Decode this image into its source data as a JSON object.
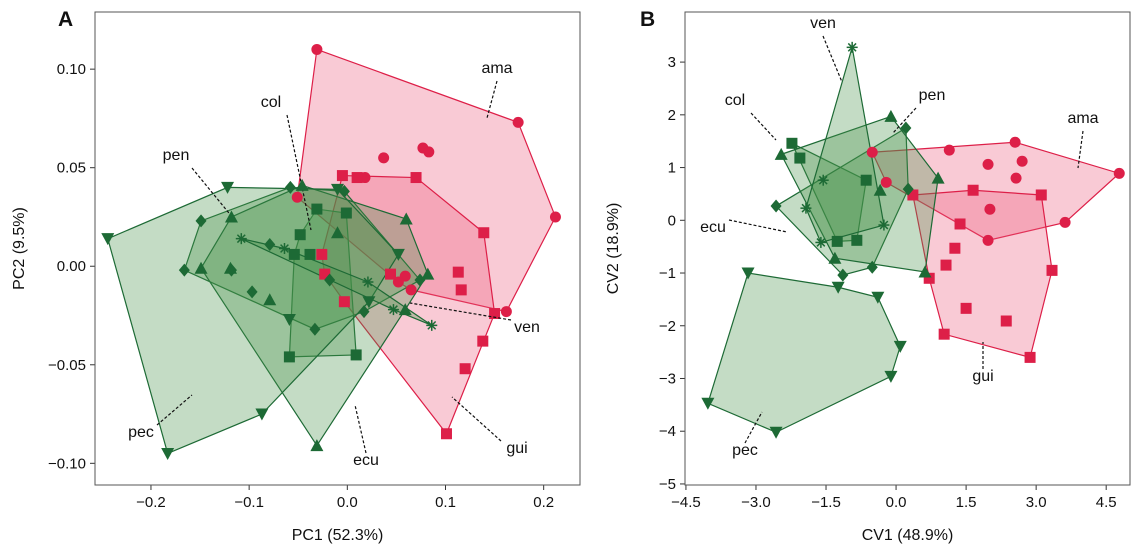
{
  "chart_data": [
    {
      "type": "scatter",
      "panel_label": "A",
      "xlabel": "PC1 (52.3%)",
      "ylabel": "PC2 (9.5%)",
      "xlim": [
        -0.257,
        0.237
      ],
      "ylim": [
        -0.111,
        0.129
      ],
      "xticks": [
        {
          "value": -0.2,
          "label": "−0.2"
        },
        {
          "value": -0.1,
          "label": "−0.1"
        },
        {
          "value": 0,
          "label": "0.0"
        },
        0.1,
        0.2
      ],
      "yticks": [
        {
          "value": -0.1,
          "label": "−0.10"
        },
        {
          "value": -0.05,
          "label": "−0.05"
        },
        {
          "value": 0,
          "label": "0.00"
        },
        {
          "value": 0.05,
          "label": "0.05"
        },
        {
          "value": 0.1,
          "label": "0.10"
        }
      ],
      "series": [
        {
          "name": "ama",
          "color": "#dd1f48",
          "marker": "circle",
          "x": [
            -0.031,
            0.174,
            0.212,
            0.162,
            -0.051,
            0.018,
            0.037,
            0.077,
            0.083,
            0.059,
            0.052,
            0.065
          ],
          "values": [
            0.11,
            0.073,
            0.025,
            -0.023,
            0.035,
            0.045,
            0.055,
            0.06,
            0.058,
            -0.005,
            -0.008,
            -0.012
          ]
        },
        {
          "name": "gui",
          "color": "#dd1f48",
          "marker": "square",
          "x": [
            -0.005,
            0.01,
            0.07,
            0.139,
            0.113,
            0.116,
            0.15,
            0.138,
            0.12,
            0.101,
            -0.026,
            -0.023,
            -0.003,
            0.044
          ],
          "values": [
            0.046,
            0.045,
            0.045,
            0.017,
            -0.003,
            -0.012,
            -0.024,
            -0.038,
            -0.052,
            -0.085,
            0.006,
            -0.004,
            -0.018,
            -0.004
          ]
        },
        {
          "name": "col",
          "color": "#1d6a35",
          "marker": "square",
          "x": [
            -0.031,
            -0.054,
            -0.059,
            0.009,
            -0.048,
            -0.001,
            -0.038
          ],
          "values": [
            0.029,
            0.006,
            -0.046,
            -0.045,
            0.016,
            0.027,
            0.006
          ]
        },
        {
          "name": "pen",
          "color": "#1d6a35",
          "marker": "diamond",
          "x": [
            -0.166,
            -0.149,
            -0.058,
            -0.003,
            0.074,
            0.017,
            -0.097,
            -0.079,
            -0.033,
            -0.118,
            -0.018
          ],
          "values": [
            -0.002,
            0.023,
            0.04,
            0.038,
            -0.007,
            -0.023,
            -0.013,
            0.011,
            -0.032,
            -0.002,
            -0.007
          ]
        },
        {
          "name": "ecu",
          "color": "#1d6a35",
          "marker": "triangle-up",
          "x": [
            -0.149,
            -0.118,
            -0.046,
            0.06,
            0.082,
            0.059,
            -0.031,
            -0.119,
            -0.01,
            -0.079
          ],
          "values": [
            -0.001,
            0.025,
            0.041,
            0.024,
            -0.004,
            -0.022,
            -0.091,
            -0.001,
            0.017,
            -0.017
          ]
        },
        {
          "name": "pec",
          "color": "#1d6a35",
          "marker": "triangle-down",
          "x": [
            -0.244,
            -0.183,
            -0.087,
            -0.122,
            -0.01,
            -0.059,
            0.022,
            0.052
          ],
          "values": [
            0.014,
            -0.095,
            -0.075,
            0.04,
            0.039,
            -0.027,
            -0.018,
            0.006
          ]
        },
        {
          "name": "ven",
          "color": "#1d6a35",
          "marker": "asterisk",
          "x": [
            -0.108,
            0.086,
            0.047,
            0.021,
            -0.064
          ],
          "values": [
            0.014,
            -0.03,
            -0.022,
            -0.008,
            0.009
          ]
        }
      ]
    },
    {
      "type": "scatter",
      "panel_label": "B",
      "xlabel": "CV1 (48.9%)",
      "ylabel": "CV2 (18.9%)",
      "xlim": [
        -4.52,
        5.01
      ],
      "ylim": [
        -5.02,
        3.95
      ],
      "xticks": [
        {
          "value": -4.5,
          "label": "−4.5"
        },
        {
          "value": -3,
          "label": "−3.0"
        },
        {
          "value": -1.5,
          "label": "−1.5"
        },
        {
          "value": 0,
          "label": "0.0"
        },
        1.5,
        {
          "value": 3,
          "label": "3.0"
        },
        4.5
      ],
      "yticks": [
        {
          "value": -5,
          "label": "−5"
        },
        {
          "value": -4,
          "label": "−4"
        },
        {
          "value": -3,
          "label": "−3"
        },
        {
          "value": -2,
          "label": "−2"
        },
        {
          "value": -1,
          "label": "−1"
        },
        0,
        1,
        2,
        3
      ],
      "series": [
        {
          "name": "ama",
          "color": "#dd1f48",
          "marker": "circle",
          "x": [
            4.78,
            3.62,
            2.55,
            1.14,
            -0.51,
            -0.21,
            2.57,
            1.97,
            2.7,
            2.01,
            1.97
          ],
          "values": [
            0.89,
            -0.04,
            1.48,
            1.33,
            1.29,
            0.72,
            0.8,
            1.06,
            1.12,
            0.21,
            -0.38
          ]
        },
        {
          "name": "gui",
          "color": "#dd1f48",
          "marker": "square",
          "x": [
            3.11,
            3.34,
            2.87,
            1.03,
            0.71,
            0.36,
            1.65,
            2.36,
            1.5,
            1.26,
            1.37,
            1.07
          ],
          "values": [
            0.48,
            -0.95,
            -2.6,
            -2.16,
            -1.1,
            0.48,
            0.57,
            -1.91,
            -1.67,
            -0.53,
            -0.07,
            -0.85
          ]
        },
        {
          "name": "col",
          "color": "#1d6a35",
          "marker": "square",
          "x": [
            -2.23,
            -1.26,
            -0.64,
            -0.84,
            -2.06
          ],
          "values": [
            1.46,
            -0.4,
            0.76,
            -0.38,
            1.18
          ]
        },
        {
          "name": "pen",
          "color": "#1d6a35",
          "marker": "diamond",
          "x": [
            -2.57,
            0.21,
            0.26,
            -0.51,
            -1.14
          ],
          "values": [
            0.27,
            1.75,
            0.59,
            -0.89,
            -1.04
          ]
        },
        {
          "name": "ecu",
          "color": "#1d6a35",
          "marker": "triangle-up",
          "x": [
            -2.46,
            -0.11,
            0.9,
            0.62,
            -1.31,
            -0.34
          ],
          "values": [
            1.25,
            1.97,
            0.8,
            -0.98,
            -0.72,
            0.57
          ]
        },
        {
          "name": "pec",
          "color": "#1d6a35",
          "marker": "triangle-down",
          "x": [
            -3.17,
            -4.03,
            -2.57,
            -0.11,
            0.09,
            -0.39,
            -1.24
          ],
          "values": [
            -1.0,
            -3.47,
            -4.02,
            -2.96,
            -2.39,
            -1.46,
            -1.27
          ]
        },
        {
          "name": "ven",
          "color": "#1d6a35",
          "marker": "asterisk",
          "x": [
            -0.94,
            -1.61,
            -1.93,
            -1.56,
            -0.26
          ],
          "values": [
            3.28,
            -0.42,
            0.23,
            0.76,
            -0.09
          ]
        }
      ]
    }
  ]
}
